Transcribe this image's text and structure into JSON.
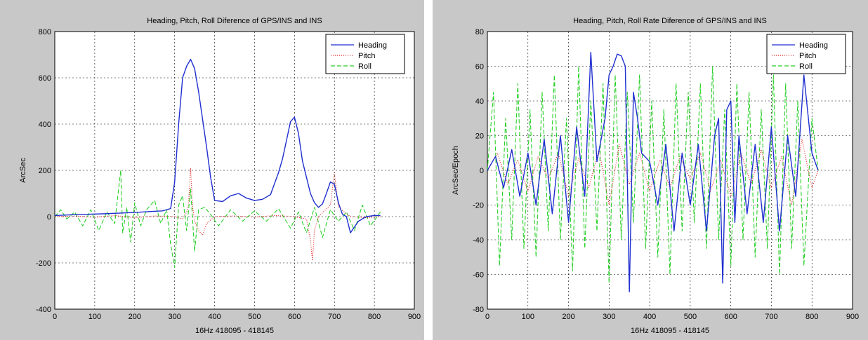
{
  "chart_data": [
    {
      "type": "line",
      "title": "Heading, Pitch, Roll Diference of GPS/INS and INS",
      "xlabel": "16Hz 418095 - 418145",
      "ylabel": "ArcSec",
      "xlim": [
        0,
        900
      ],
      "ylim": [
        -400,
        800
      ],
      "x_ticks": [
        "0",
        "100",
        "200",
        "300",
        "400",
        "500",
        "600",
        "700",
        "800",
        "900"
      ],
      "y_ticks": [
        "-400",
        "-200",
        "0",
        "200",
        "400",
        "600",
        "800"
      ],
      "grid": true,
      "legend_position": "top-right",
      "colors": {
        "Heading": "#1f2fd0",
        "Pitch": "#e01818",
        "Roll": "#28d028"
      },
      "series": [
        {
          "name": "Heading",
          "style": "solid",
          "x": [
            0,
            40,
            80,
            120,
            160,
            200,
            240,
            270,
            290,
            300,
            310,
            320,
            330,
            340,
            350,
            360,
            370,
            380,
            390,
            400,
            420,
            440,
            460,
            480,
            500,
            520,
            540,
            560,
            570,
            580,
            590,
            600,
            610,
            620,
            630,
            640,
            650,
            660,
            670,
            680,
            690,
            700,
            710,
            720,
            730,
            740,
            760,
            780,
            800,
            815
          ],
          "values": [
            5,
            8,
            10,
            12,
            15,
            18,
            22,
            25,
            35,
            150,
            400,
            600,
            650,
            680,
            640,
            540,
            420,
            300,
            170,
            70,
            65,
            90,
            100,
            80,
            70,
            75,
            95,
            190,
            250,
            330,
            410,
            430,
            360,
            240,
            170,
            100,
            60,
            40,
            55,
            100,
            150,
            140,
            60,
            10,
            0,
            -70,
            -20,
            0,
            5,
            5
          ]
        },
        {
          "name": "Pitch",
          "style": "dotted",
          "x": [
            0,
            50,
            100,
            150,
            200,
            250,
            300,
            320,
            330,
            335,
            340,
            345,
            350,
            360,
            370,
            380,
            400,
            450,
            500,
            550,
            600,
            630,
            640,
            645,
            650,
            660,
            690,
            700,
            710,
            740,
            780,
            815
          ],
          "values": [
            0,
            2,
            -3,
            5,
            -5,
            3,
            0,
            -10,
            20,
            60,
            210,
            40,
            -20,
            -60,
            -80,
            -30,
            0,
            3,
            -2,
            5,
            0,
            -10,
            -100,
            -190,
            -60,
            0,
            50,
            190,
            40,
            0,
            -5,
            0
          ]
        },
        {
          "name": "Roll",
          "style": "dashed",
          "x": [
            0,
            15,
            30,
            50,
            70,
            90,
            110,
            130,
            150,
            165,
            170,
            180,
            190,
            200,
            215,
            230,
            250,
            265,
            280,
            290,
            300,
            310,
            320,
            330,
            340,
            350,
            360,
            375,
            390,
            410,
            440,
            470,
            500,
            530,
            560,
            590,
            610,
            630,
            650,
            670,
            690,
            710,
            730,
            750,
            770,
            790,
            815
          ],
          "values": [
            0,
            30,
            -10,
            20,
            -40,
            30,
            -60,
            20,
            -30,
            200,
            -70,
            40,
            -110,
            60,
            -40,
            30,
            70,
            -30,
            30,
            -120,
            -220,
            50,
            90,
            -60,
            120,
            -150,
            30,
            40,
            10,
            -40,
            30,
            -20,
            25,
            -20,
            35,
            -50,
            20,
            -70,
            40,
            -90,
            30,
            -20,
            20,
            -60,
            50,
            -40,
            20
          ]
        }
      ]
    },
    {
      "type": "line",
      "title": "Heading, Pitch, Roll Rate Diference of GPS/INS and INS",
      "xlabel": "16Hz 418095 - 418145",
      "ylabel": "ArcSec/Epoch",
      "xlim": [
        0,
        900
      ],
      "ylim": [
        -80,
        80
      ],
      "x_ticks": [
        "0",
        "100",
        "200",
        "300",
        "400",
        "500",
        "600",
        "700",
        "800",
        "900"
      ],
      "y_ticks": [
        "-80",
        "-60",
        "-40",
        "-20",
        "0",
        "20",
        "40",
        "60",
        "80"
      ],
      "grid": true,
      "legend_position": "top-right",
      "colors": {
        "Heading": "#1f2fd0",
        "Pitch": "#e01818",
        "Roll": "#28d028"
      },
      "series": [
        {
          "name": "Heading",
          "style": "solid",
          "x": [
            0,
            20,
            40,
            60,
            80,
            100,
            120,
            140,
            160,
            180,
            200,
            220,
            240,
            255,
            270,
            290,
            300,
            310,
            320,
            330,
            340,
            350,
            360,
            370,
            380,
            400,
            420,
            440,
            460,
            480,
            500,
            520,
            540,
            560,
            570,
            580,
            590,
            600,
            610,
            620,
            640,
            660,
            680,
            700,
            720,
            740,
            760,
            780,
            800,
            815
          ],
          "values": [
            0,
            8,
            -10,
            12,
            -15,
            10,
            -20,
            18,
            -25,
            20,
            -30,
            25,
            -15,
            68,
            5,
            30,
            55,
            60,
            67,
            66,
            60,
            -70,
            45,
            30,
            10,
            5,
            -20,
            15,
            -35,
            10,
            -20,
            15,
            -35,
            20,
            30,
            -65,
            35,
            40,
            -30,
            20,
            -25,
            15,
            -30,
            25,
            -35,
            20,
            -15,
            55,
            10,
            0
          ]
        },
        {
          "name": "Pitch",
          "style": "dotted",
          "x": [
            0,
            25,
            50,
            75,
            100,
            125,
            150,
            175,
            200,
            225,
            250,
            275,
            300,
            325,
            350,
            375,
            400,
            425,
            450,
            475,
            500,
            525,
            550,
            575,
            600,
            625,
            650,
            675,
            700,
            725,
            750,
            775,
            800,
            815
          ],
          "values": [
            0,
            10,
            -8,
            6,
            -12,
            8,
            -5,
            10,
            -15,
            7,
            -10,
            12,
            -20,
            15,
            -8,
            10,
            -12,
            6,
            -10,
            8,
            -5,
            10,
            -12,
            6,
            -15,
            10,
            -8,
            12,
            -10,
            8,
            -20,
            18,
            -10,
            0
          ]
        },
        {
          "name": "Roll",
          "style": "dashed",
          "x": [
            0,
            15,
            30,
            45,
            60,
            75,
            90,
            105,
            120,
            135,
            150,
            165,
            180,
            195,
            210,
            225,
            240,
            255,
            270,
            285,
            300,
            315,
            330,
            345,
            360,
            375,
            390,
            405,
            420,
            435,
            450,
            465,
            480,
            495,
            510,
            525,
            540,
            555,
            570,
            585,
            600,
            615,
            630,
            645,
            660,
            675,
            690,
            705,
            720,
            735,
            750,
            765,
            780,
            800,
            815
          ],
          "values": [
            0,
            45,
            -55,
            30,
            -40,
            50,
            -45,
            35,
            -50,
            45,
            -35,
            55,
            -40,
            30,
            -58,
            60,
            -45,
            40,
            -35,
            50,
            -65,
            55,
            -40,
            45,
            -30,
            55,
            -45,
            40,
            -50,
            35,
            -60,
            50,
            -35,
            45,
            -30,
            50,
            -45,
            60,
            -40,
            35,
            -55,
            50,
            -40,
            45,
            -50,
            35,
            -45,
            55,
            -60,
            50,
            -45,
            40,
            -55,
            30,
            0
          ]
        }
      ]
    }
  ]
}
